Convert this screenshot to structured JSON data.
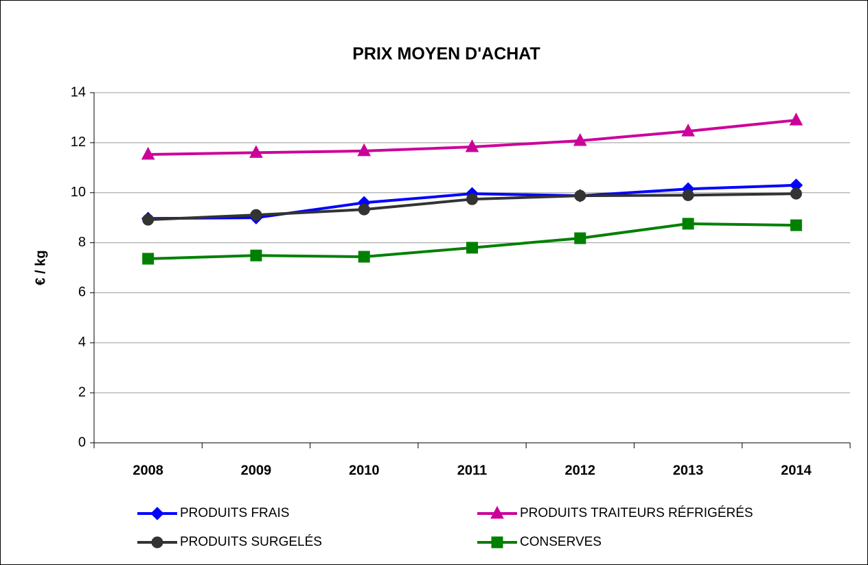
{
  "chart_data": {
    "type": "line",
    "title": "PRIX MOYEN D'ACHAT",
    "y_label": "€ / kg",
    "categories": [
      "2008",
      "2009",
      "2010",
      "2011",
      "2012",
      "2013",
      "2014"
    ],
    "series": [
      {
        "name": "PRODUITS FRAIS",
        "color": "#0000ff",
        "marker": "diamond",
        "values": [
          8.97,
          9.0,
          9.6,
          9.96,
          9.88,
          10.15,
          10.3
        ]
      },
      {
        "name": "PRODUITS TRAITEURS RÉFRIGÉRÉS",
        "color": "#cc0099",
        "marker": "triangle",
        "values": [
          11.53,
          11.6,
          11.67,
          11.83,
          12.08,
          12.46,
          12.9
        ]
      },
      {
        "name": "PRODUITS SURGELÉS",
        "color": "#333333",
        "marker": "circle",
        "values": [
          8.92,
          9.11,
          9.33,
          9.74,
          9.88,
          9.9,
          9.96
        ]
      },
      {
        "name": "CONSERVES",
        "color": "#008000",
        "marker": "square",
        "values": [
          7.36,
          7.49,
          7.44,
          7.8,
          8.18,
          8.76,
          8.7
        ]
      }
    ],
    "ylim": [
      0,
      14
    ],
    "yticks": [
      0,
      2,
      4,
      6,
      8,
      10,
      12,
      14
    ],
    "grid": true
  }
}
